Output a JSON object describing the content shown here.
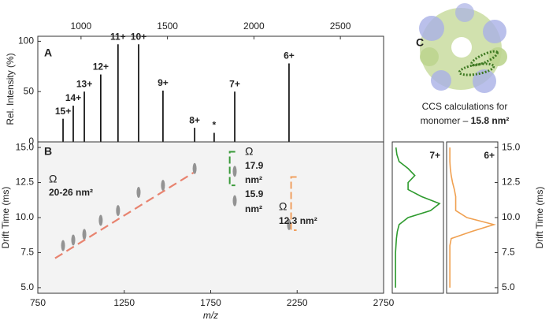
{
  "chart_data": [
    {
      "type": "spectrum",
      "panel": "A",
      "ylabel": "Rel. Intensity (%)",
      "xlim": [
        750,
        2750
      ],
      "xticks": [
        1000,
        1500,
        2000,
        2500
      ],
      "ylim": [
        0,
        105
      ],
      "yticks": [
        0,
        50,
        100
      ],
      "color": "#000000",
      "x": [
        896,
        955,
        1019,
        1114,
        1214,
        1333,
        1474,
        1657,
        1770,
        1889,
        2203
      ],
      "values": [
        23,
        36,
        50,
        67,
        97,
        97,
        51,
        14,
        9,
        50,
        78
      ],
      "peak_labels": [
        "15+",
        "14+",
        "13+",
        "12+",
        "11+",
        "10+",
        "9+",
        "8+",
        "*",
        "7+",
        "6+"
      ]
    },
    {
      "type": "drift-map",
      "panel": "B",
      "xlabel": "m/z",
      "ylabel": "Drift Time (ms)",
      "xlim": [
        750,
        2750
      ],
      "xticks": [
        750,
        1250,
        1750,
        2250,
        2750
      ],
      "ylim": [
        4.6,
        15.4
      ],
      "yticks": [
        {
          "value": 5,
          "label": "5.0"
        },
        {
          "value": 7.5,
          "label": "7.5"
        },
        {
          "value": 10,
          "label": "10.0"
        },
        {
          "value": 12.5,
          "label": "12.5"
        },
        {
          "value": 15,
          "label": "15.0"
        }
      ],
      "spots": {
        "x": [
          896,
          955,
          1019,
          1114,
          1214,
          1333,
          1474,
          1657,
          1889,
          1889,
          2203
        ],
        "y": [
          8.0,
          8.4,
          8.8,
          9.8,
          10.5,
          11.8,
          12.3,
          13.5,
          11.2,
          13.3,
          9.5
        ]
      },
      "trend": {
        "x": [
          850,
          1650
        ],
        "y": [
          7.1,
          13.2
        ],
        "color": "#e8836f"
      },
      "brackets": [
        {
          "x": 1860,
          "range": [
            12.3,
            14.7
          ],
          "color": "#3a9a3a"
        },
        {
          "x": 2215,
          "range": [
            9.1,
            12.9
          ],
          "color": "#f0a060"
        }
      ],
      "annotations": [
        "Ω",
        "20-26 nm²",
        "Ω",
        "17.9",
        "nm²",
        "15.9",
        "nm²",
        "Ω",
        "12.3 nm²"
      ]
    },
    {
      "type": "profile",
      "label": "7+",
      "color": "#2e9a2e",
      "ylim": [
        4.6,
        15.4
      ],
      "y": [
        5,
        5.5,
        6,
        6.5,
        7,
        7.5,
        8,
        8.5,
        9,
        9.5,
        10,
        10.5,
        11,
        11.5,
        12,
        12.5,
        13,
        13.5,
        14,
        14.5,
        15
      ],
      "values": [
        0.02,
        0.02,
        0.02,
        0.02,
        0.02,
        0.02,
        0.03,
        0.04,
        0.06,
        0.1,
        0.3,
        0.8,
        1.0,
        0.6,
        0.3,
        0.3,
        0.45,
        0.3,
        0.1,
        0.05,
        0.03
      ]
    },
    {
      "type": "profile",
      "label": "6+",
      "color": "#f0a050",
      "ylabel": "Drift Time (ms)",
      "ylim": [
        4.6,
        15.4
      ],
      "yticks": [
        {
          "value": 5,
          "label": "5.0"
        },
        {
          "value": 7.5,
          "label": "7.5"
        },
        {
          "value": 10,
          "label": "10.0"
        },
        {
          "value": 12.5,
          "label": "12.5"
        },
        {
          "value": 15,
          "label": "15.0"
        }
      ],
      "y": [
        5,
        5.5,
        6,
        6.5,
        7,
        7.5,
        8,
        8.5,
        9,
        9.5,
        10,
        10.5,
        11,
        11.5,
        12,
        12.5,
        13,
        13.5,
        14,
        14.5,
        15
      ],
      "values": [
        0.02,
        0.02,
        0.02,
        0.02,
        0.02,
        0.02,
        0.02,
        0.05,
        0.5,
        1.0,
        0.4,
        0.15,
        0.15,
        0.15,
        0.12,
        0.08,
        0.05,
        0.03,
        0.02,
        0.02,
        0.02
      ]
    }
  ],
  "panel_c": {
    "label": "C",
    "caption": [
      "CCS calculations for",
      "monomer – "
    ],
    "value": "15.8 nm²"
  }
}
